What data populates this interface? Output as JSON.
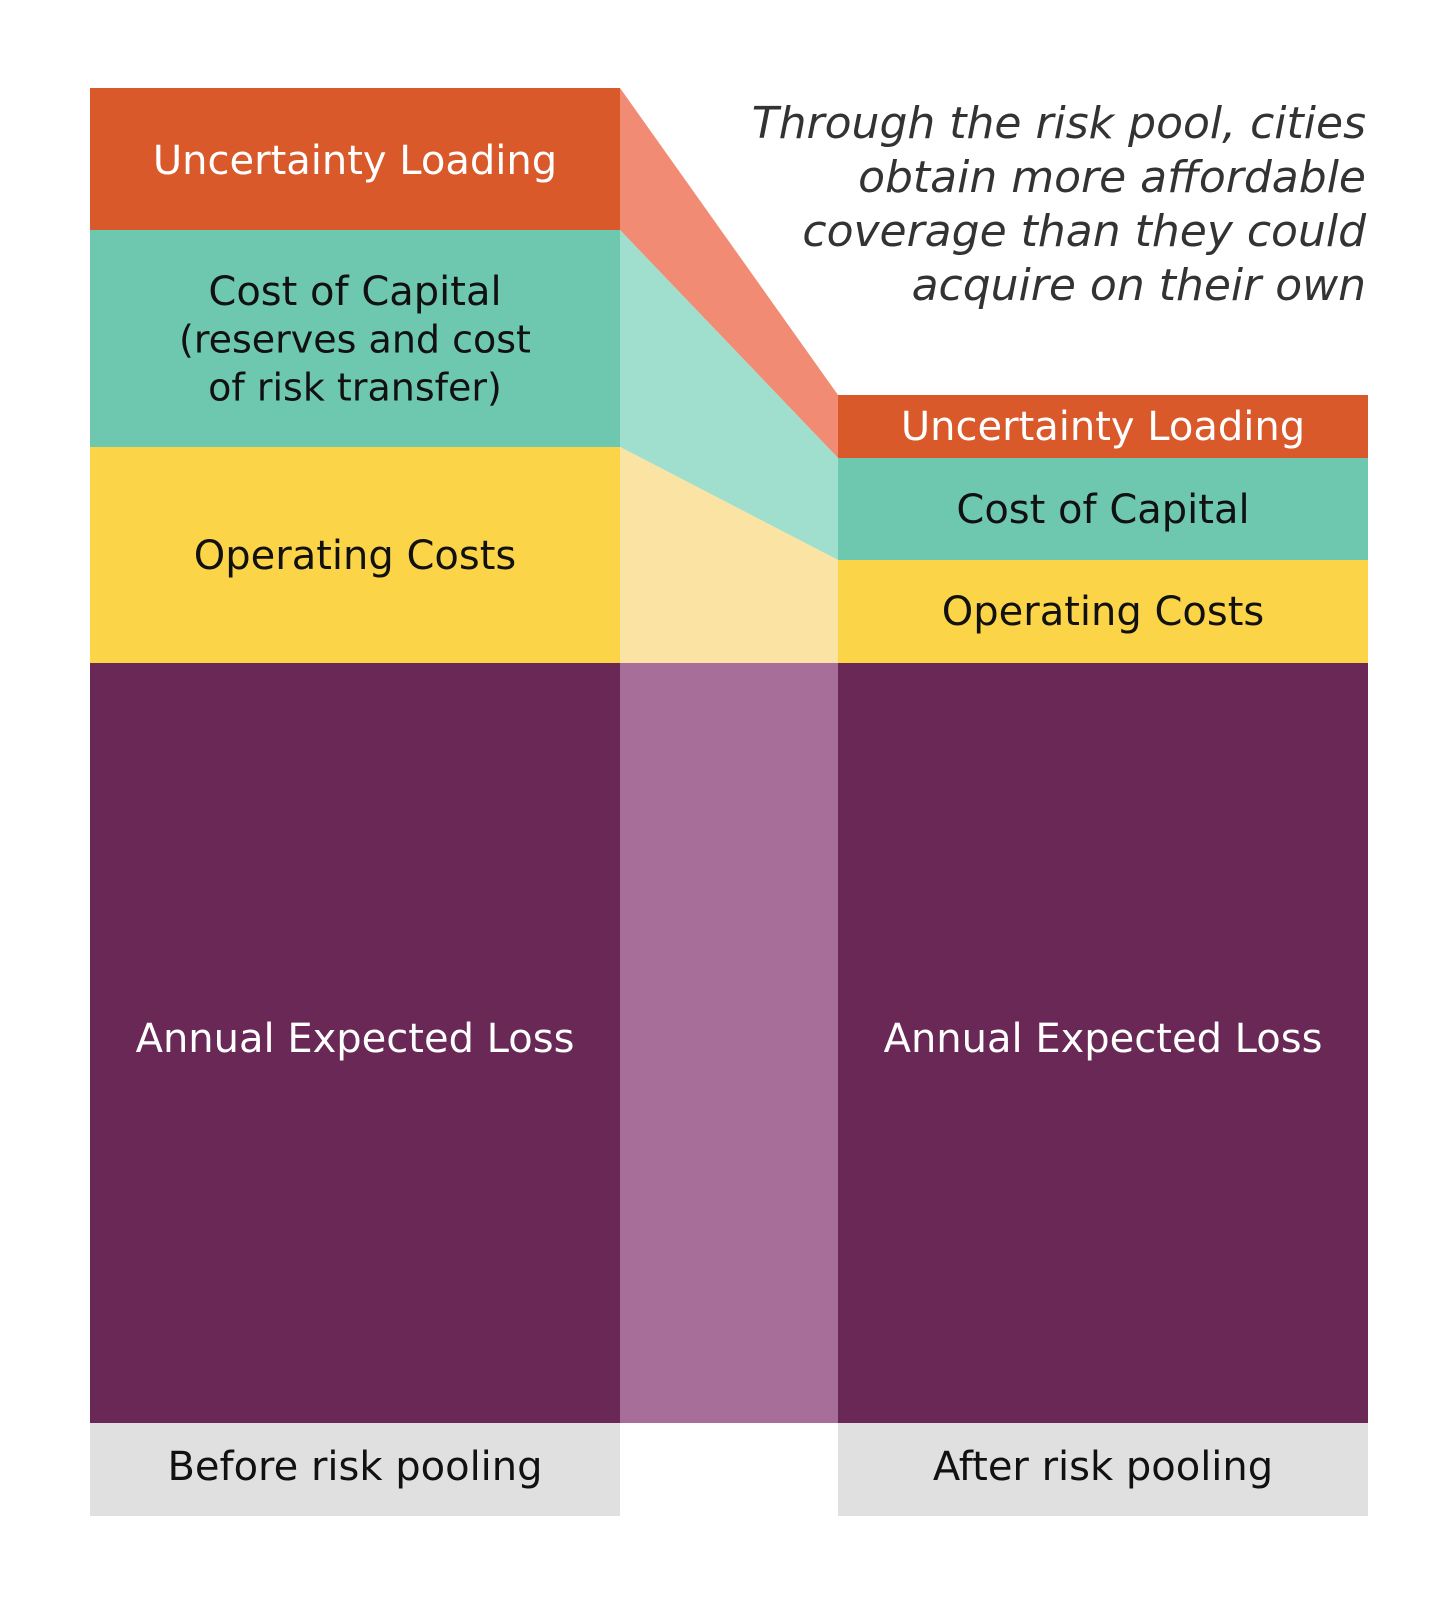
{
  "colors": {
    "uncertainty": "#D9592A",
    "uncertainty_band": "#F28B73",
    "capital": "#6EC8AF",
    "capital_band": "#A0DECD",
    "operating": "#FCD447",
    "operating_band": "#FBE4A3",
    "loss": "#692855",
    "loss_band": "#A66E98",
    "footer": "#E0E0E0",
    "dark_text": "#111111",
    "light_text": "#ffffff"
  },
  "caption": [
    "Through the risk pool, cities",
    "obtain more affordable",
    "coverage than they could",
    "acquire on their own"
  ],
  "before": {
    "footer_label": "Before risk pooling",
    "uncertainty": "Uncertainty Loading",
    "capital_title": "Cost of Capital",
    "capital_sub1": "(reserves and cost",
    "capital_sub2": "of risk transfer)",
    "operating": "Operating Costs",
    "loss": "Annual Expected Loss"
  },
  "after": {
    "footer_label": "After risk pooling",
    "uncertainty": "Uncertainty Loading",
    "capital": "Cost of Capital",
    "operating": "Operating Costs",
    "loss": "Annual Expected Loss"
  }
}
